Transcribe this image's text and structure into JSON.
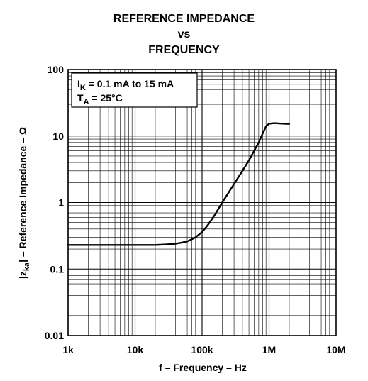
{
  "chart_data": {
    "type": "line",
    "title_lines": [
      "REFERENCE IMPEDANCE",
      "vs",
      "FREQUENCY"
    ],
    "xlabel": "f – Frequency – Hz",
    "ylabel": {
      "pre": "|z",
      "sub": "ka",
      "post": "| – Reference Impedance – Ω"
    },
    "x_scale": "log",
    "y_scale": "log",
    "xlim": [
      1000,
      10000000
    ],
    "ylim": [
      0.01,
      100
    ],
    "grid": true,
    "x_ticks": [
      {
        "value": 1000,
        "label": "1k"
      },
      {
        "value": 10000,
        "label": "10k"
      },
      {
        "value": 100000,
        "label": "100k"
      },
      {
        "value": 1000000,
        "label": "1M"
      },
      {
        "value": 10000000,
        "label": "10M"
      }
    ],
    "y_ticks": [
      {
        "value": 0.01,
        "label": "0.01"
      },
      {
        "value": 0.1,
        "label": "0.1"
      },
      {
        "value": 1,
        "label": "1"
      },
      {
        "value": 10,
        "label": "10"
      },
      {
        "value": 100,
        "label": "100"
      }
    ],
    "annotation": {
      "line1": {
        "pre": "I",
        "sub": "K",
        "post": " = 0.1 mA to 15 mA"
      },
      "line2": {
        "pre": "T",
        "sub": "A",
        "post": " = 25°C"
      },
      "placement": "top-left"
    },
    "series": [
      {
        "x": [
          1000,
          5000,
          10000,
          20000,
          30000,
          40000,
          50000,
          60000,
          70000,
          80000,
          100000,
          120000,
          150000,
          200000,
          300000,
          400000,
          500000,
          600000,
          700000,
          800000,
          900000,
          1000000,
          1200000,
          1500000,
          2000000
        ],
        "y": [
          0.23,
          0.23,
          0.23,
          0.23,
          0.235,
          0.24,
          0.25,
          0.26,
          0.28,
          0.3,
          0.36,
          0.45,
          0.62,
          1.0,
          1.9,
          3.0,
          4.3,
          6.0,
          8.0,
          10.8,
          14.0,
          15.3,
          15.6,
          15.4,
          15.2
        ]
      }
    ]
  }
}
